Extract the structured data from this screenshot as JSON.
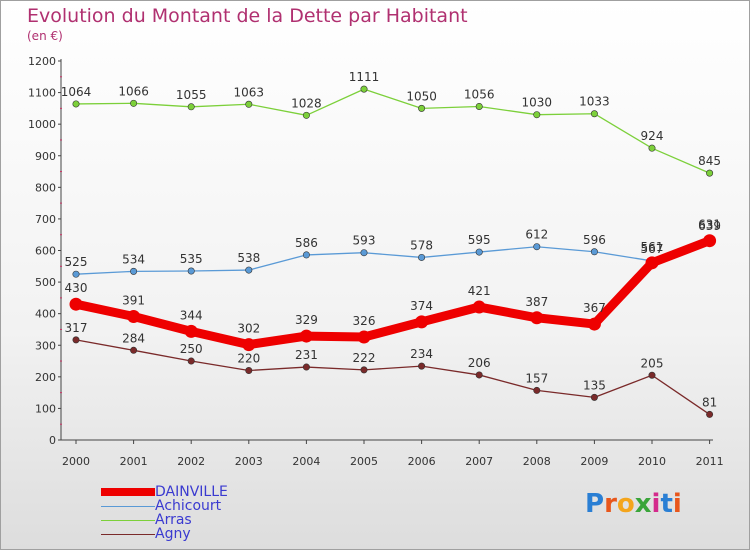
{
  "title": "Evolution du Montant de la Dette par Habitant",
  "subtitle": "(en €)",
  "logo": {
    "text": "Proxiti",
    "colors": [
      "#2a7fd4",
      "#e8561b",
      "#f4a51c",
      "#3aa53a",
      "#d42a8c",
      "#2a7fd4",
      "#e8561b"
    ]
  },
  "chart_data": {
    "type": "line",
    "categories": [
      "2000",
      "2001",
      "2002",
      "2003",
      "2004",
      "2005",
      "2006",
      "2007",
      "2008",
      "2009",
      "2010",
      "2011"
    ],
    "yticks": [
      "0",
      "100",
      "200",
      "300",
      "400",
      "500",
      "600",
      "700",
      "800",
      "900",
      "1000",
      "1100",
      "1200"
    ],
    "ylim": [
      0,
      1200
    ],
    "grid": false,
    "legend_position": "bottom-left",
    "series": [
      {
        "name": "Arras",
        "color": "#7cd03a",
        "values": [
          1064,
          1066,
          1055,
          1063,
          1028,
          1111,
          1050,
          1056,
          1030,
          1033,
          924,
          845
        ],
        "labels": [
          "1064",
          "1066",
          "1055",
          "1063",
          "1028",
          "1111",
          "1050",
          "1056",
          "1030",
          "1033",
          "924",
          "845"
        ]
      },
      {
        "name": "Achicourt",
        "color": "#5a9ad6",
        "values": [
          525,
          534,
          535,
          538,
          586,
          593,
          578,
          595,
          612,
          596,
          567,
          639
        ],
        "labels": [
          "525",
          "534",
          "535",
          "538",
          "586",
          "593",
          "578",
          "595",
          "612",
          "596",
          "567",
          "639"
        ]
      },
      {
        "name": "Agny",
        "color": "#7a2a2a",
        "values": [
          317,
          284,
          250,
          220,
          231,
          222,
          234,
          206,
          157,
          135,
          205,
          81
        ],
        "labels": [
          "317",
          "284",
          "250",
          "220",
          "231",
          "222",
          "234",
          "206",
          "157",
          "135",
          "205",
          "81"
        ]
      },
      {
        "name": "DAINVILLE",
        "color": "#ee0000",
        "values": [
          430,
          391,
          344,
          302,
          329,
          326,
          374,
          421,
          387,
          367,
          561,
          631
        ],
        "labels": [
          "430",
          "391",
          "344",
          "302",
          "329",
          "326",
          "374",
          "421",
          "387",
          "367",
          "561",
          "631"
        ]
      }
    ]
  },
  "legend": [
    {
      "name": "DAINVILLE",
      "color": "#ee0000",
      "thick": true
    },
    {
      "name": "Achicourt",
      "color": "#5a9ad6",
      "thick": false
    },
    {
      "name": "Arras",
      "color": "#7cd03a",
      "thick": false
    },
    {
      "name": "Agny",
      "color": "#7a2a2a",
      "thick": false
    }
  ]
}
